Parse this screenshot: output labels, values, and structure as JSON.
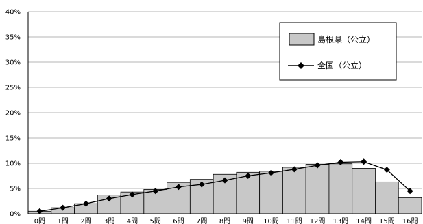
{
  "chart_data": {
    "type": "bar",
    "categories": [
      "0問",
      "1問",
      "2問",
      "3問",
      "4問",
      "5問",
      "6問",
      "7問",
      "8問",
      "9問",
      "10問",
      "11問",
      "12問",
      "13問",
      "14問",
      "15問",
      "16問"
    ],
    "series": [
      {
        "name": "島根県（公立）",
        "kind": "bar",
        "color": "#c8c8c8",
        "values": [
          0.5,
          1.2,
          2.0,
          3.7,
          4.3,
          4.8,
          6.2,
          6.8,
          7.8,
          8.2,
          8.4,
          9.2,
          9.8,
          9.9,
          9.0,
          6.3,
          3.2
        ]
      },
      {
        "name": "全国（公立）",
        "kind": "line",
        "color": "#000000",
        "values": [
          0.5,
          1.2,
          2.0,
          3.0,
          3.8,
          4.5,
          5.3,
          5.8,
          6.6,
          7.5,
          8.1,
          8.8,
          9.6,
          10.2,
          10.3,
          8.7,
          4.5
        ]
      }
    ],
    "y_ticks": [
      "0%",
      "5%",
      "10%",
      "15%",
      "20%",
      "25%",
      "30%",
      "35%",
      "40%"
    ],
    "ylim": [
      0,
      40
    ],
    "grid": true,
    "legend_position": "top-right",
    "title": "",
    "xlabel": "",
    "ylabel": ""
  }
}
